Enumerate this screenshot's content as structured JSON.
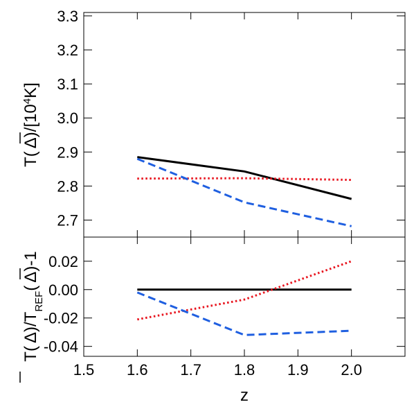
{
  "chart_data": [
    {
      "type": "line",
      "panel": "top",
      "ylabel": "T( Δ )/[10⁴K]",
      "ylabel_parts": {
        "pre": "T(",
        "delta": "Δ",
        "post": ")/[10",
        "exp": "4",
        "tail": "K]"
      },
      "xlim": [
        1.5,
        2.1
      ],
      "ylim": [
        2.65,
        3.31
      ],
      "yticks": [
        2.7,
        2.8,
        2.9,
        3.0,
        3.1,
        3.2,
        3.3
      ],
      "ytick_labels": [
        "2.7",
        "2.8",
        "2.9",
        "3.0",
        "3.1",
        "3.2",
        "3.3"
      ],
      "x": [
        1.6,
        1.8,
        2.0
      ],
      "series": [
        {
          "values": [
            2.885,
            2.843,
            2.762
          ],
          "color": "#000000",
          "style": "solid"
        },
        {
          "values": [
            2.822,
            2.823,
            2.818
          ],
          "color": "#e8141e",
          "style": "dotted"
        },
        {
          "values": [
            2.88,
            2.752,
            2.682
          ],
          "color": "#1f5fe0",
          "style": "dashed"
        }
      ]
    },
    {
      "type": "line",
      "panel": "bottom",
      "ylabel": "T( Δ )/T_REF( Δ )-1",
      "ylabel_parts": {
        "pre": "T(",
        "delta": "Δ",
        "mid": ")/T",
        "sub": "REF",
        "post": "(",
        "tail": ")-1"
      },
      "xlabel": "z",
      "xlim": [
        1.5,
        2.1
      ],
      "ylim": [
        -0.047,
        0.037
      ],
      "xticks": [
        1.5,
        1.6,
        1.7,
        1.8,
        1.9,
        2.0
      ],
      "xtick_labels": [
        "1.5",
        "1.6",
        "1.7",
        "1.8",
        "1.9",
        "2.0"
      ],
      "yticks": [
        -0.04,
        -0.02,
        0.0,
        0.02
      ],
      "ytick_labels": [
        "-0.04",
        "-0.02",
        "0.00",
        "0.02"
      ],
      "x": [
        1.6,
        1.8,
        2.0
      ],
      "series": [
        {
          "values": [
            0.0,
            0.0,
            0.0
          ],
          "color": "#000000",
          "style": "solid"
        },
        {
          "values": [
            -0.021,
            -0.007,
            0.02
          ],
          "color": "#e8141e",
          "style": "dotted"
        },
        {
          "values": [
            -0.002,
            -0.032,
            -0.029
          ],
          "color": "#1f5fe0",
          "style": "dashed"
        }
      ]
    }
  ]
}
